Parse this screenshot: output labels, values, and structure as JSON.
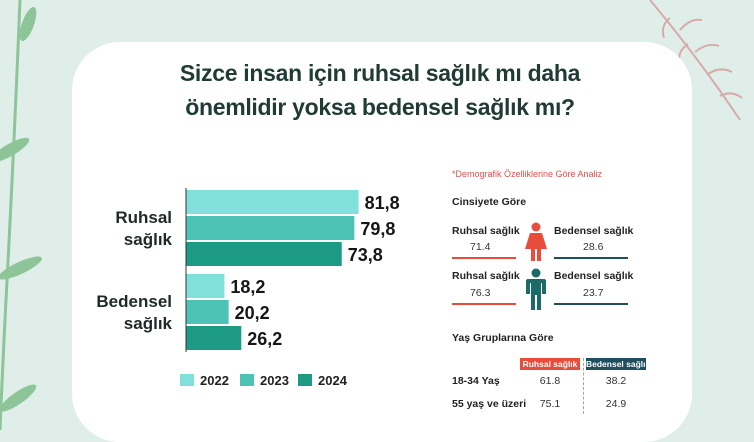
{
  "title_lines": [
    "Sizce insan için ruhsal sağlık mı daha",
    "önemlidir yoksa bedensel sağlık mı?"
  ],
  "colors": {
    "y2022": "#82e0da",
    "y2023": "#4cc3b5",
    "y2024": "#1d9a84",
    "red": "#e74c3c",
    "navy": "#1f4e5f",
    "teal_icon": "#1b6b68",
    "title": "#1f3b34"
  },
  "chart_data": {
    "type": "bar",
    "orientation": "horizontal",
    "categories": [
      "Ruhsal sağlık",
      "Bedensel sağlık"
    ],
    "category_lines": [
      [
        "Ruhsal",
        "sağlık"
      ],
      [
        "Bedensel",
        "sağlık"
      ]
    ],
    "series": [
      {
        "name": "2022",
        "values": [
          81.8,
          18.2
        ],
        "labels": [
          "81,8",
          "18,2"
        ]
      },
      {
        "name": "2023",
        "values": [
          79.8,
          20.2
        ],
        "labels": [
          "79,8",
          "20,2"
        ]
      },
      {
        "name": "2024",
        "values": [
          73.8,
          26.2
        ],
        "labels": [
          "73,8",
          "26,2"
        ]
      }
    ],
    "xlim": [
      0,
      100
    ],
    "legend_position": "bottom"
  },
  "demographic": {
    "note": "*Demografik Özelliklerine Göre Analiz",
    "gender": {
      "title": "Cinsiyete Göre",
      "rows": [
        {
          "gender": "female",
          "left_label": "Ruhsal sağlık",
          "left_value": "71.4",
          "right_label": "Bedensel sağlık",
          "right_value": "28.6"
        },
        {
          "gender": "male",
          "left_label": "Ruhsal sağlık",
          "left_value": "76.3",
          "right_label": "Bedensel sağlık",
          "right_value": "23.7"
        }
      ]
    },
    "age": {
      "title": "Yaş Gruplarına Göre",
      "headers": [
        "Ruhsal sağlık",
        "Bedensel sağlık"
      ],
      "rows": [
        {
          "label": "18-34 Yaş",
          "values": [
            "61.8",
            "38.2"
          ]
        },
        {
          "label": "55 yaş ve üzeri",
          "values": [
            "75.1",
            "24.9"
          ]
        }
      ]
    }
  }
}
